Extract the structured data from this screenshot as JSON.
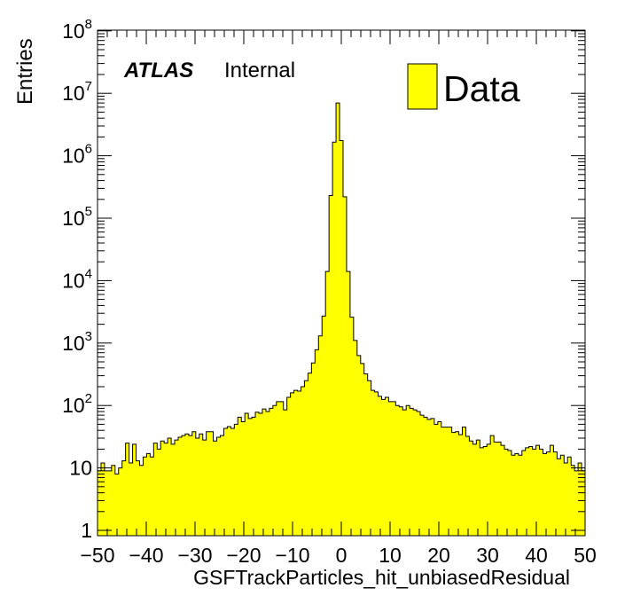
{
  "chart_data": {
    "type": "histogram",
    "xlabel": "GSFTrackParticles_hit_unbiasedResidual",
    "ylabel": "Entries",
    "xlim": [
      -50,
      50
    ],
    "ylim": [
      0.9,
      100000000
    ],
    "log_y": true,
    "grid": false,
    "legend": {
      "placement": "top-right",
      "entries": [
        "Data"
      ]
    },
    "atlas_label": {
      "bold": "ATLAS",
      "text": "Internal"
    },
    "x_tick_labels": [
      "−50",
      "−40",
      "−30",
      "−20",
      "−10",
      "0",
      "10",
      "20",
      "30",
      "40",
      "50"
    ],
    "x_ticks": [
      -50,
      -40,
      -30,
      -20,
      -10,
      0,
      10,
      20,
      30,
      40,
      50
    ],
    "y_ticks": [
      {
        "value": 1,
        "base": "1",
        "exp": ""
      },
      {
        "value": 10,
        "base": "10",
        "exp": ""
      },
      {
        "value": 100,
        "base": "10",
        "exp": "2"
      },
      {
        "value": 1000,
        "base": "10",
        "exp": "3"
      },
      {
        "value": 10000,
        "base": "10",
        "exp": "4"
      },
      {
        "value": 100000,
        "base": "10",
        "exp": "5"
      },
      {
        "value": 1000000,
        "base": "10",
        "exp": "6"
      },
      {
        "value": 10000000,
        "base": "10",
        "exp": "7"
      },
      {
        "value": 100000000,
        "base": "10",
        "exp": "8"
      }
    ],
    "series": [
      {
        "name": "Data",
        "color": "#ffff00",
        "bin_edges_start": -50,
        "bin_width": 1,
        "values": [
          9,
          12,
          9,
          9,
          11,
          8,
          10,
          13,
          25,
          12,
          24,
          13,
          11,
          15,
          17,
          15,
          25,
          20,
          27,
          25,
          30,
          24,
          28,
          31,
          33,
          35,
          33,
          38,
          30,
          35,
          28,
          38,
          38,
          27,
          31,
          33,
          43,
          46,
          43,
          50,
          65,
          55,
          75,
          62,
          65,
          78,
          75,
          88,
          80,
          90,
          100,
          115,
          115,
          85,
          135,
          160,
          175,
          170,
          200,
          250,
          330,
          480,
          780,
          1300,
          2700,
          14000,
          230000,
          1650000,
          7000000,
          1750000,
          220000,
          14000,
          2600,
          1100,
          630,
          470,
          320,
          250,
          175,
          165,
          140,
          125,
          135,
          115,
          115,
          100,
          95,
          85,
          100,
          90,
          85,
          80,
          70,
          65,
          60,
          62,
          50,
          55,
          45,
          45,
          45,
          37,
          38,
          34,
          45,
          32,
          27,
          24,
          28,
          21,
          22,
          24,
          33,
          26,
          26,
          23,
          20,
          19,
          16,
          17,
          16,
          19,
          21,
          22,
          20,
          23,
          20,
          17,
          18,
          23,
          18,
          14,
          16,
          12,
          15,
          11,
          9,
          12,
          9
        ]
      }
    ]
  }
}
